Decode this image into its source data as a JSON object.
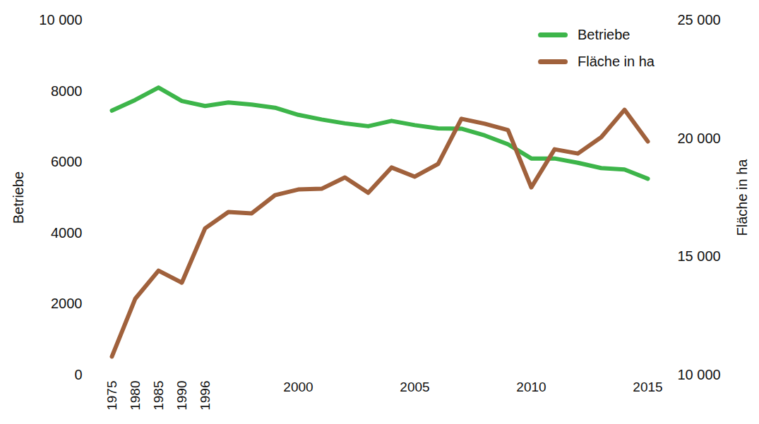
{
  "chart_data": {
    "type": "line",
    "categories": [
      "1975",
      "1980",
      "1985",
      "1990",
      "1996",
      null,
      null,
      null,
      "2000",
      null,
      null,
      null,
      null,
      "2005",
      null,
      null,
      null,
      null,
      "2010",
      null,
      null,
      null,
      null,
      "2015"
    ],
    "series": [
      {
        "name": "Betriebe",
        "color": "#3db54a",
        "values": [
          7450,
          7750,
          8100,
          7720,
          7580,
          7680,
          7620,
          7530,
          7330,
          7200,
          7090,
          7010,
          7160,
          7040,
          6950,
          6940,
          6750,
          6500,
          6100,
          6100,
          5980,
          5830,
          5790,
          5530
        ]
      },
      {
        "name": "Fläche in ha",
        "color": "#a0613c",
        "axis": "y2",
        "values": [
          10780,
          13220,
          14410,
          13900,
          16200,
          16890,
          16830,
          17600,
          17840,
          17870,
          18350,
          17700,
          18770,
          18380,
          18920,
          20830,
          20620,
          20350,
          17930,
          19540,
          19360,
          20050,
          21210,
          19870
        ]
      }
    ],
    "ylabel": "Betriebe",
    "y2label": "Fläche in ha",
    "ylim": [
      0,
      10000
    ],
    "yticks": [
      0,
      2000,
      4000,
      6000,
      8000,
      {
        "value": 10000,
        "label": "10 000"
      }
    ],
    "y2lim": [
      10000,
      25000
    ],
    "y2ticks": [
      {
        "value": 10000,
        "label": "10 000"
      },
      {
        "value": 15000,
        "label": "15 000"
      },
      {
        "value": 20000,
        "label": "20 000"
      },
      {
        "value": 25000,
        "label": "25 000"
      }
    ],
    "legend": "top-right",
    "grid": false
  }
}
